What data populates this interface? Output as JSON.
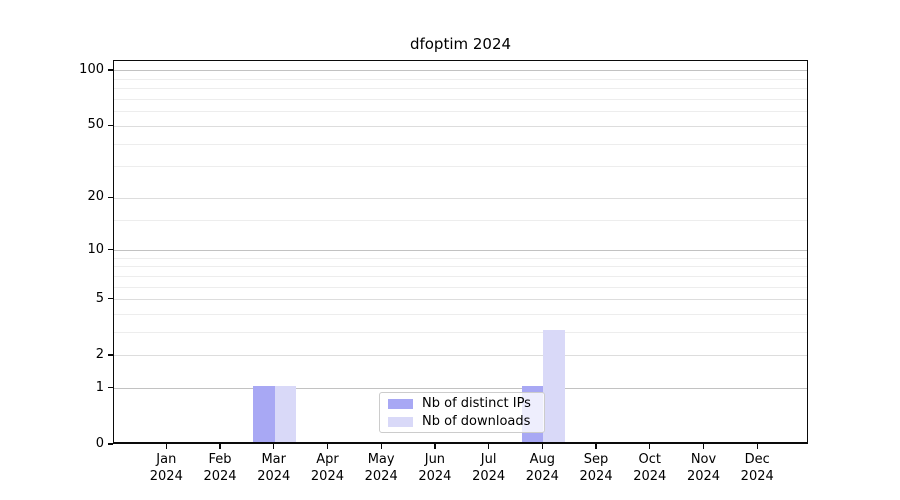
{
  "chart_data": {
    "type": "bar",
    "title": "dfoptim 2024",
    "categories": [
      "Jan",
      "Feb",
      "Mar",
      "Apr",
      "May",
      "Jun",
      "Jul",
      "Aug",
      "Sep",
      "Oct",
      "Nov",
      "Dec"
    ],
    "year_label": "2024",
    "series": [
      {
        "name": "Nb of distinct IPs",
        "color": "#a8a8f4",
        "values": [
          0,
          0,
          1,
          0,
          0,
          0,
          0,
          1,
          0,
          0,
          0,
          0
        ]
      },
      {
        "name": "Nb of downloads",
        "color": "#d9d9f8",
        "values": [
          0,
          0,
          1,
          0,
          0,
          0,
          0,
          3,
          0,
          0,
          0,
          0
        ]
      }
    ],
    "yscale": "log1p",
    "ylim": [
      0,
      113
    ],
    "yticks_labeled": [
      0,
      1,
      2,
      5,
      10,
      20,
      50,
      100
    ],
    "yticks_major": [
      1,
      10,
      100
    ],
    "yticks_mid": [
      2,
      5,
      20,
      50
    ],
    "yticks_minor": [
      3,
      4,
      6,
      7,
      8,
      9,
      15,
      30,
      40,
      60,
      70,
      80,
      90
    ],
    "grid": true,
    "legend_position": "lower center"
  },
  "colors": {
    "grid_major": "#c2c2c2",
    "grid_mid": "#dddddd",
    "grid_minor": "#ededed",
    "spine": "#0a0a0a",
    "background": "#ffffff"
  }
}
